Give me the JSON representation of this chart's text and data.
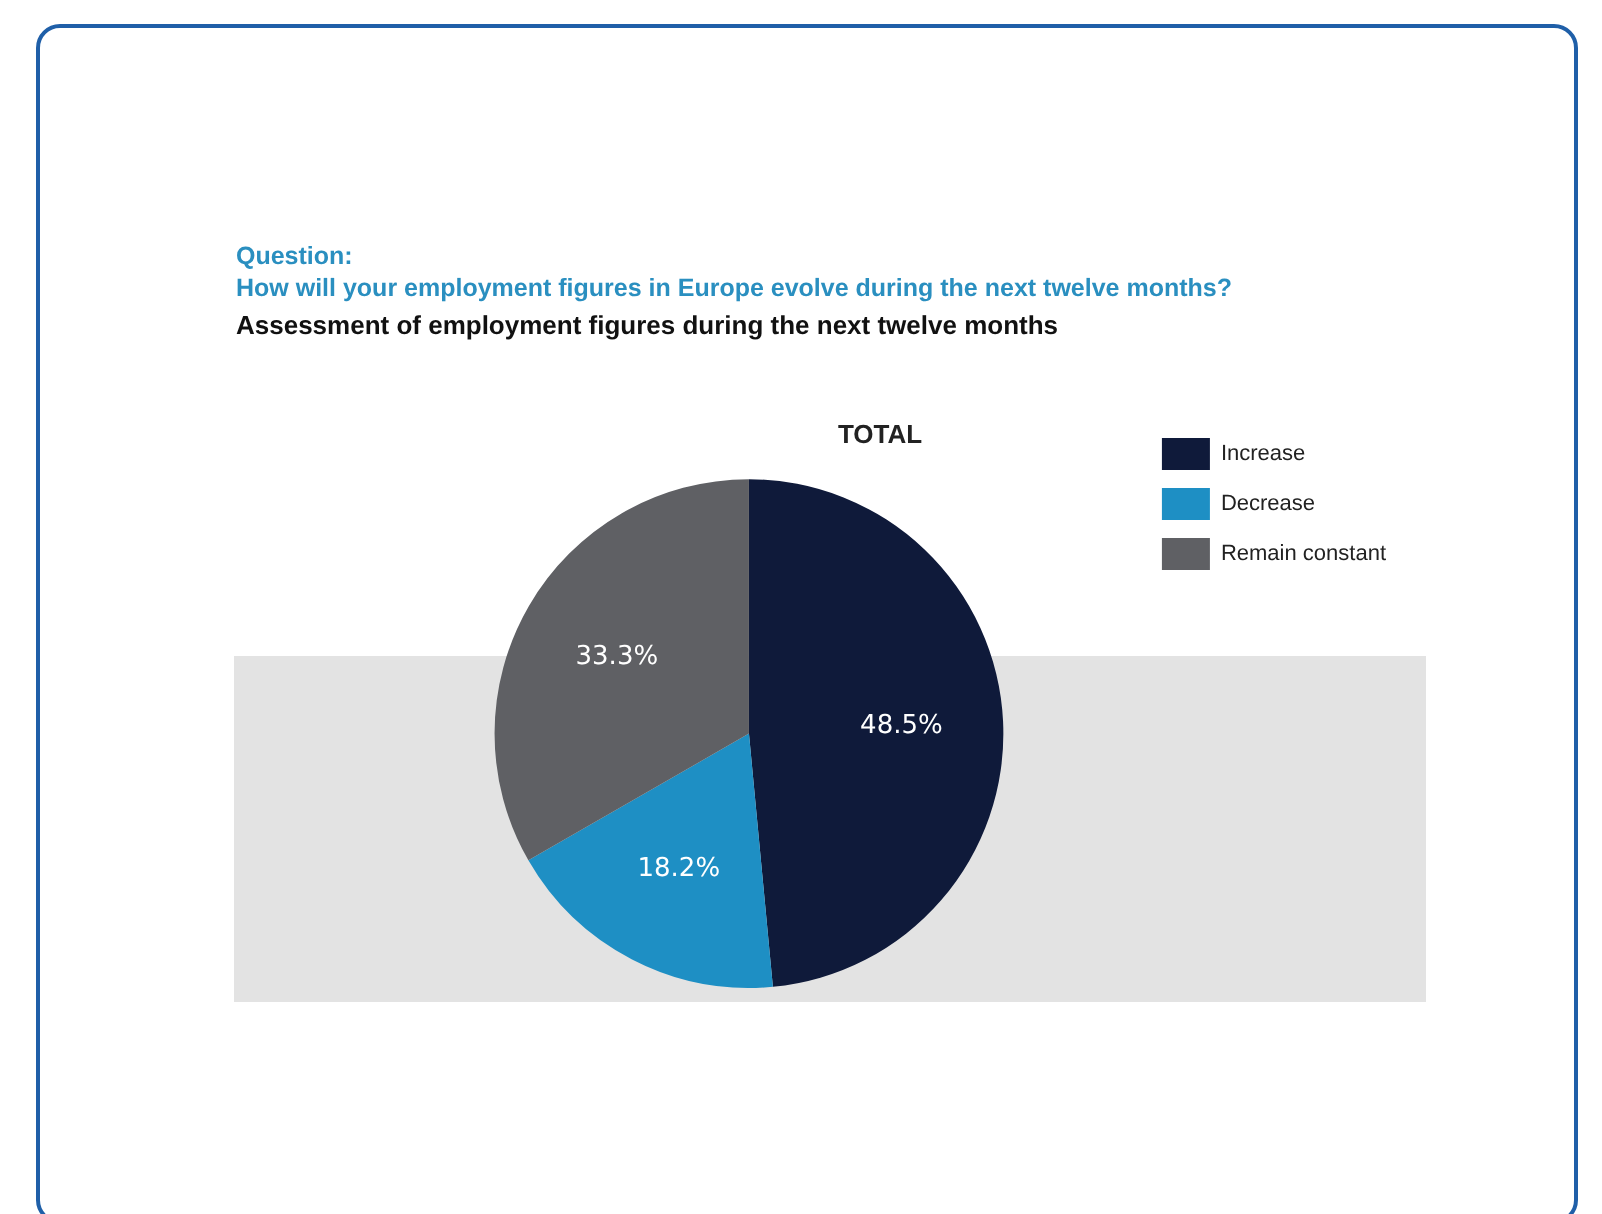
{
  "chart_data": {
    "type": "pie",
    "title": "TOTAL",
    "subtitle": "Assessment of employment figures during the next twelve months",
    "annotations": [
      "Question:",
      "How will your employment figures in Europe evolve during the next twelve months?"
    ],
    "categories": [
      "Increase",
      "Decrease",
      "Remain constant"
    ],
    "values": [
      48.5,
      18.2,
      33.3
    ],
    "colors": [
      "#0f1a3a",
      "#1e8fc4",
      "#5f6064"
    ],
    "value_labels": [
      "48.5%",
      "18.2%",
      "33.3%"
    ],
    "legend": "top right"
  }
}
